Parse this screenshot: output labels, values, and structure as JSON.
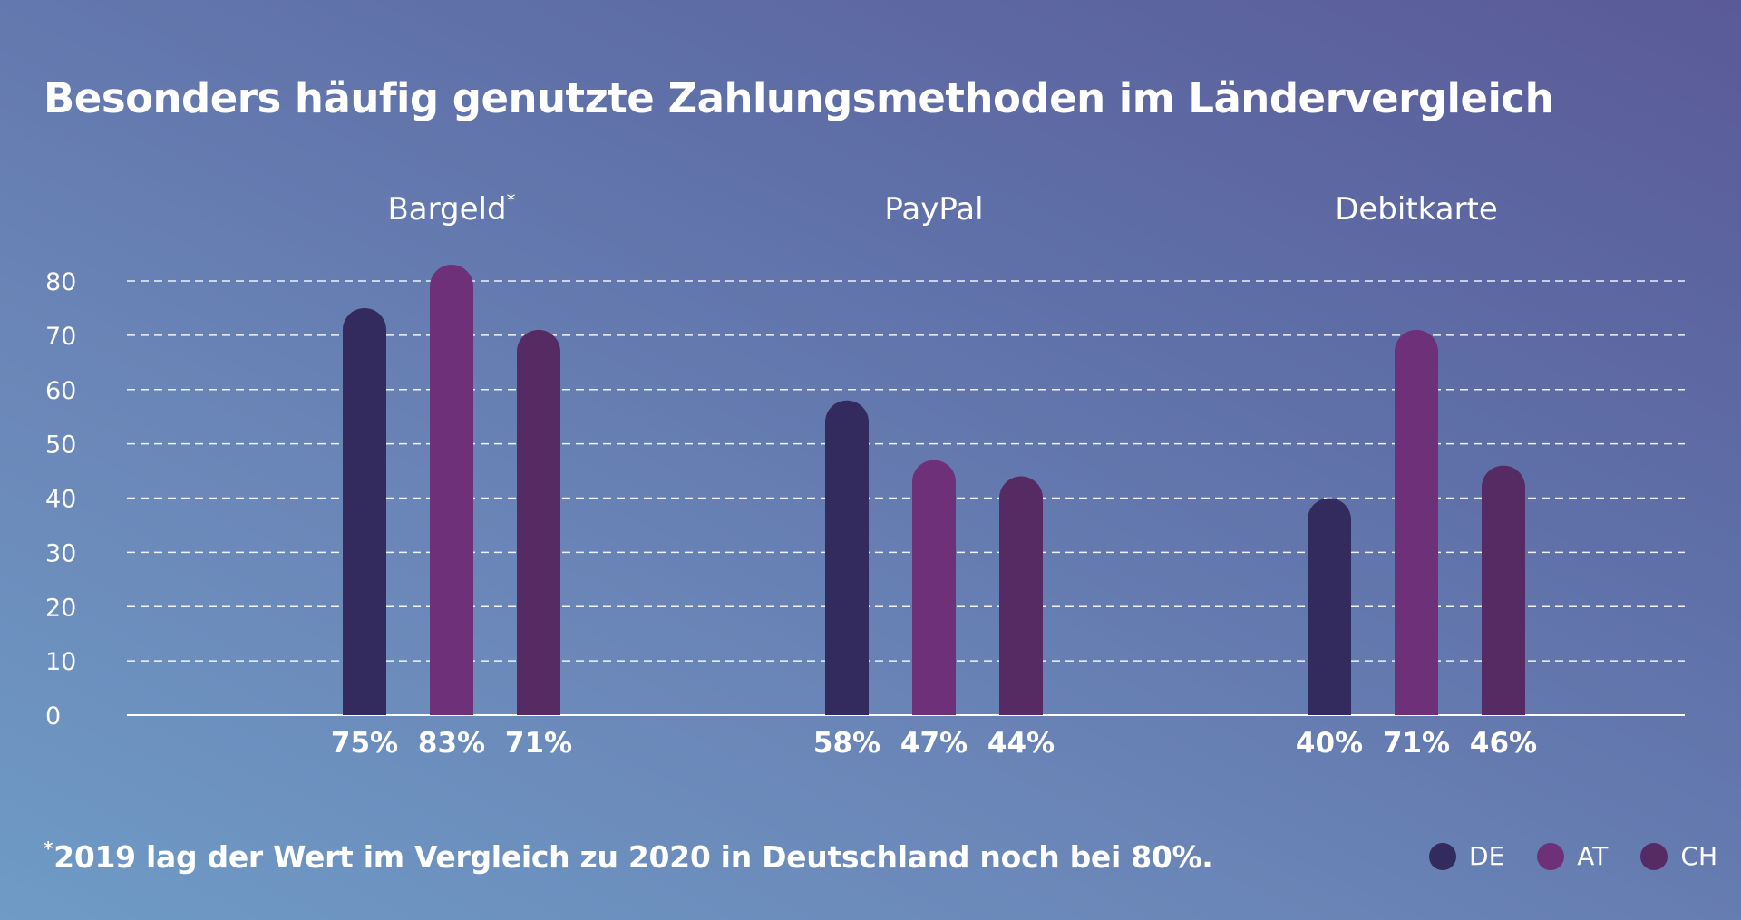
{
  "chart_data": {
    "type": "bar",
    "title": "Besonders häufig genutzte Zahlungsmethoden im Ländervergleich",
    "groups": [
      {
        "label": "Bargeld",
        "marker": "*"
      },
      {
        "label": "PayPal",
        "marker": ""
      },
      {
        "label": "Debitkarte",
        "marker": ""
      }
    ],
    "series": [
      {
        "name": "DE",
        "color": "#332a5e",
        "values": [
          75,
          58,
          40
        ],
        "labels": [
          "75%",
          "58%",
          "40%"
        ]
      },
      {
        "name": "AT",
        "color": "#6e3079",
        "values": [
          83,
          47,
          71
        ],
        "labels": [
          "83%",
          "47%",
          "71%"
        ]
      },
      {
        "name": "CH",
        "color": "#562b63",
        "values": [
          71,
          44,
          46
        ],
        "labels": [
          "71%",
          "44%",
          "46%"
        ]
      }
    ],
    "yticks": [
      "0",
      "10",
      "20",
      "30",
      "40",
      "50",
      "60",
      "70",
      "80"
    ],
    "ylim": [
      0,
      80
    ],
    "grid": true,
    "legend_position": "bottom-right",
    "footnote": {
      "marker": "*",
      "text": "2019 lag der Wert im Vergleich zu 2020 in Deutschland noch bei 80%."
    }
  }
}
